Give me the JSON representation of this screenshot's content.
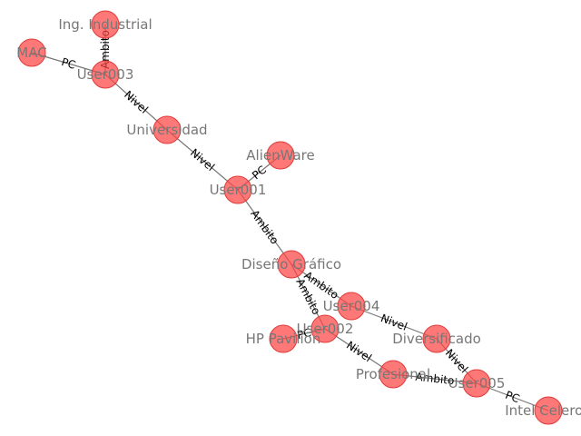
{
  "graph": {
    "nodes": [
      {
        "id": "ing",
        "label": "Ing. Industrial"
      },
      {
        "id": "mac",
        "label": "MAC"
      },
      {
        "id": "user003",
        "label": "User003"
      },
      {
        "id": "universidad",
        "label": "Universidad"
      },
      {
        "id": "alienware",
        "label": "AlienWare"
      },
      {
        "id": "user001",
        "label": "User001"
      },
      {
        "id": "diseno",
        "label": "Diseño Gráfico"
      },
      {
        "id": "user004",
        "label": "User004"
      },
      {
        "id": "hp",
        "label": "HP Pavilion"
      },
      {
        "id": "user002",
        "label": "User002"
      },
      {
        "id": "diversificado",
        "label": "Diversificado"
      },
      {
        "id": "profesional",
        "label": "Profesional"
      },
      {
        "id": "user005",
        "label": "User005"
      },
      {
        "id": "intel",
        "label": "Intel Celeron"
      }
    ],
    "edges": [
      {
        "source": "user003",
        "target": "ing",
        "label": "Ambito"
      },
      {
        "source": "user003",
        "target": "mac",
        "label": "PC"
      },
      {
        "source": "user003",
        "target": "universidad",
        "label": "Nivel"
      },
      {
        "source": "user001",
        "target": "universidad",
        "label": "Nivel"
      },
      {
        "source": "user001",
        "target": "alienware",
        "label": "PC"
      },
      {
        "source": "user001",
        "target": "diseno",
        "label": "Ambito"
      },
      {
        "source": "user004",
        "target": "diseno",
        "label": "Ambito"
      },
      {
        "source": "user002",
        "target": "diseno",
        "label": "Ambito"
      },
      {
        "source": "user004",
        "target": "diversificado",
        "label": "Nivel"
      },
      {
        "source": "user002",
        "target": "hp",
        "label": "PC"
      },
      {
        "source": "user002",
        "target": "profesional",
        "label": "Nivel"
      },
      {
        "source": "user005",
        "target": "diversificado",
        "label": "Nivel"
      },
      {
        "source": "user005",
        "target": "profesional",
        "label": "Ambito"
      },
      {
        "source": "user005",
        "target": "intel",
        "label": "PC"
      }
    ]
  }
}
